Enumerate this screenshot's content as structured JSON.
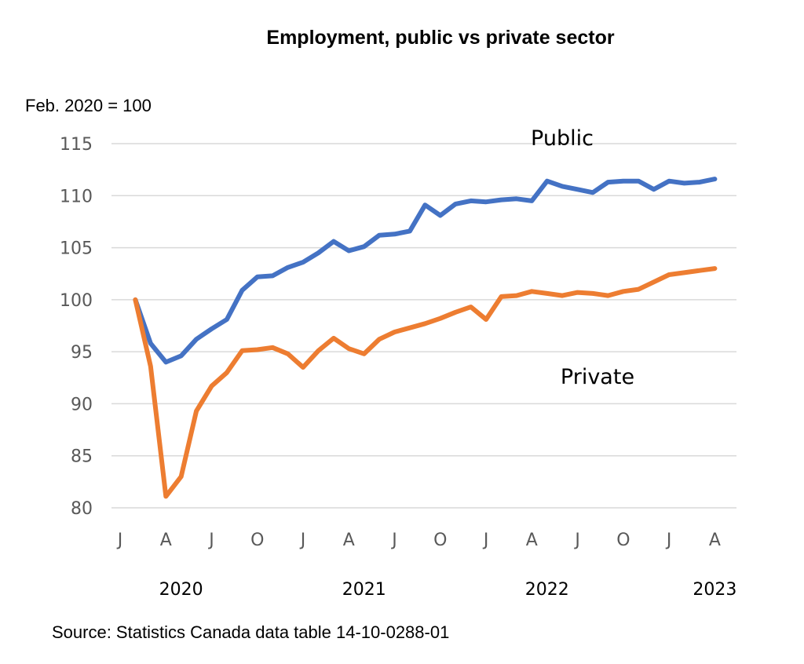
{
  "chart_data": {
    "type": "line",
    "title": "Employment, public vs private sector",
    "ylabel": "Feb. 2020 = 100",
    "ylim": [
      80,
      115
    ],
    "yticks": [
      80,
      85,
      90,
      95,
      100,
      105,
      110,
      115
    ],
    "grid": true,
    "month_ticks": [
      "J",
      "A",
      "J",
      "O",
      "J",
      "A",
      "J",
      "O",
      "J",
      "A",
      "J",
      "O",
      "J",
      "A"
    ],
    "years": [
      {
        "label": "2020",
        "month_index": 4
      },
      {
        "label": "2021",
        "month_index": 16
      },
      {
        "label": "2022",
        "month_index": 28
      },
      {
        "label": "2023",
        "month_index": 39
      }
    ],
    "series": [
      {
        "name": "Public",
        "color": "#4472c4",
        "values": [
          100,
          95.8,
          94.0,
          94.6,
          96.2,
          97.2,
          98.1,
          100.9,
          102.2,
          102.3,
          103.1,
          103.6,
          104.5,
          105.6,
          104.7,
          105.1,
          106.2,
          106.3,
          106.6,
          109.1,
          108.1,
          109.2,
          109.5,
          109.4,
          109.6,
          109.7,
          109.5,
          111.4,
          110.9,
          110.6,
          110.3,
          111.3,
          111.4,
          111.4,
          110.6,
          111.4,
          111.2,
          111.3,
          111.6
        ]
      },
      {
        "name": "Private",
        "color": "#ed7d31",
        "values": [
          100,
          93.6,
          81.1,
          83.0,
          89.3,
          91.7,
          93.0,
          95.1,
          95.2,
          95.4,
          94.8,
          93.5,
          95.1,
          96.3,
          95.3,
          94.8,
          96.2,
          96.9,
          97.3,
          97.7,
          98.2,
          98.8,
          99.3,
          98.1,
          100.3,
          100.4,
          100.8,
          100.6,
          100.4,
          100.7,
          100.6,
          100.4,
          100.8,
          101.0,
          101.7,
          102.4,
          102.6,
          102.8,
          103.0
        ]
      }
    ]
  },
  "source": "Source: Statistics Canada data table 14-10-0288-01"
}
